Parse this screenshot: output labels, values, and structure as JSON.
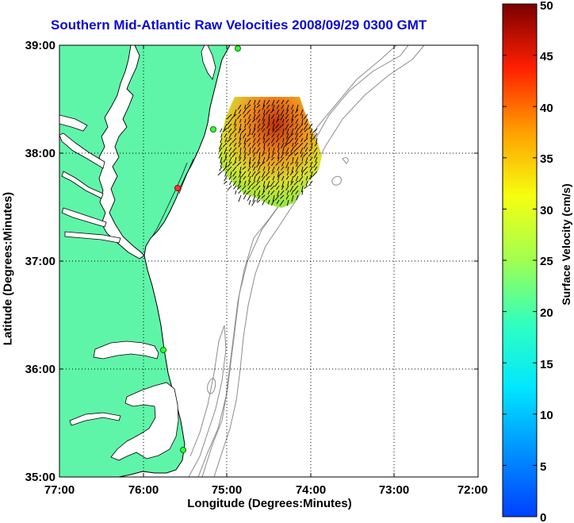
{
  "title": "Southern Mid-Atlantic Raw Velocities 2008/09/29 0300 GMT",
  "xlabel": "Longitude (Degrees:Minutes)",
  "ylabel": "Latitude (Degrees:Minutes)",
  "x_ticks": [
    "77:00",
    "76:00",
    "75:00",
    "74:00",
    "73:00",
    "72:00"
  ],
  "y_ticks": [
    "39:00",
    "38:00",
    "37:00",
    "36:00",
    "35:00"
  ],
  "colorbar": {
    "label": "Surface Velocity (cm/s)",
    "ticks": [
      "0",
      "5",
      "10",
      "15",
      "20",
      "25",
      "30",
      "35",
      "40",
      "45",
      "50"
    ],
    "min": 0,
    "max": 50,
    "colormap": "jet"
  },
  "map": {
    "land_color": "#5ff5a8",
    "water_color": "#ffffff",
    "grid": "dotted",
    "bathymetry_contour_color": "#8c8c8c",
    "lon_range": [
      "77:00 W",
      "72:00 W"
    ],
    "lat_range": [
      "35:00 N",
      "39:00 N"
    ]
  },
  "stations": [
    {
      "name": "station-1",
      "color": "#33ff33"
    },
    {
      "name": "station-2",
      "color": "#33ff33"
    },
    {
      "name": "station-3",
      "color": "#ff3333"
    },
    {
      "name": "station-4",
      "color": "#33ff33"
    },
    {
      "name": "station-5",
      "color": "#33ff33"
    }
  ]
}
